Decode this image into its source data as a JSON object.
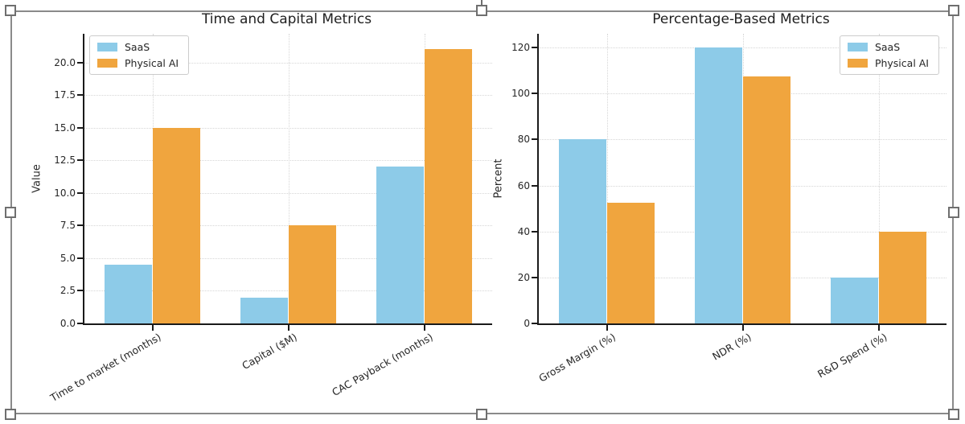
{
  "selection": {
    "border_color": "#8a8a8a",
    "handle_color": "#ffffff",
    "handles": [
      "top-left",
      "top-center",
      "top-right",
      "middle-left",
      "middle-right",
      "bottom-left",
      "bottom-center",
      "bottom-right"
    ]
  },
  "chart_data": [
    {
      "type": "bar",
      "title": "Time and Capital Metrics",
      "xlabel": "",
      "ylabel": "Value",
      "categories": [
        "Time to market (months)",
        "Capital ($M)",
        "CAC Payback (months)"
      ],
      "series": [
        {
          "name": "SaaS",
          "color": "#8DCBE8",
          "values": [
            4.5,
            2.0,
            12.0
          ]
        },
        {
          "name": "Physical AI",
          "color": "#F0A53E",
          "values": [
            15.0,
            7.5,
            21.0
          ]
        }
      ],
      "yticks": [
        0,
        2.5,
        5,
        7.5,
        10,
        12.5,
        15,
        17.5,
        20
      ],
      "ytick_labels": [
        "0.0",
        "2.5",
        "5.0",
        "7.5",
        "10.0",
        "12.5",
        "15.0",
        "17.5",
        "20.0"
      ],
      "ylim": [
        0,
        22.2
      ],
      "grid": true,
      "xtick_rotation_deg": 30,
      "legend_position": "top-left"
    },
    {
      "type": "bar",
      "title": "Percentage-Based Metrics",
      "xlabel": "",
      "ylabel": "Percent",
      "categories": [
        "Gross Margin (%)",
        "NDR (%)",
        "R&D Spend (%)"
      ],
      "series": [
        {
          "name": "SaaS",
          "color": "#8DCBE8",
          "values": [
            80,
            120,
            20
          ]
        },
        {
          "name": "Physical AI",
          "color": "#F0A53E",
          "values": [
            52.5,
            107.5,
            40
          ]
        }
      ],
      "yticks": [
        0,
        20,
        40,
        60,
        80,
        100,
        120
      ],
      "ytick_labels": [
        "0",
        "20",
        "40",
        "60",
        "80",
        "100",
        "120"
      ],
      "ylim": [
        0,
        126
      ],
      "grid": true,
      "xtick_rotation_deg": 30,
      "legend_position": "top-right"
    }
  ]
}
